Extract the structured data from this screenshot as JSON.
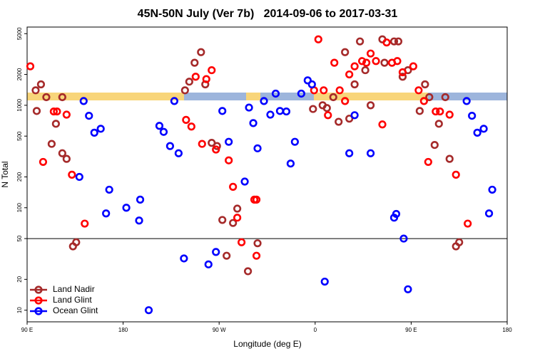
{
  "chart_data": {
    "type": "scatter",
    "title": "45N-50N July (Ver 7b)   2014-09-06 to 2017-03-31",
    "xlabel": "Longitude (deg E)",
    "ylabel": "N Total",
    "ylog": true,
    "xlim": [
      90,
      540
    ],
    "ylim": [
      7.7,
      5800
    ],
    "xticks": [
      {
        "value": 90,
        "label": "90 E"
      },
      {
        "value": 180,
        "label": "180"
      },
      {
        "value": 270,
        "label": "90 W"
      },
      {
        "value": 360,
        "label": "0"
      },
      {
        "value": 450,
        "label": "90 E"
      },
      {
        "value": 540,
        "label": "180"
      }
    ],
    "yticks": [
      10,
      20,
      50,
      100,
      200,
      500,
      1000,
      2000,
      5000
    ],
    "reference_line": 50,
    "legend": "bottom-left",
    "series": [
      {
        "name": "Land Nadir",
        "color": "#a52a2a",
        "x": [
          98,
          99,
          103,
          108,
          113,
          117,
          123,
          123,
          127,
          133,
          136,
          238,
          242,
          247,
          253,
          257,
          263,
          268,
          273,
          277,
          283,
          287,
          297,
          306,
          358,
          367,
          371,
          377,
          382,
          388,
          392,
          397,
          402,
          407,
          412,
          423,
          425,
          434,
          438,
          442,
          447,
          458,
          463,
          467,
          472,
          476,
          482,
          486,
          492,
          495
        ],
        "values": [
          1400,
          880,
          1600,
          1200,
          420,
          660,
          1200,
          340,
          300,
          42,
          46,
          1400,
          1700,
          2600,
          3300,
          1600,
          430,
          400,
          76,
          34,
          71,
          98,
          24,
          45,
          920,
          1000,
          940,
          1200,
          690,
          3300,
          740,
          1600,
          4200,
          2200,
          1000,
          4400,
          2600,
          4200,
          4200,
          1900,
          2200,
          880,
          1600,
          1200,
          410,
          660,
          1200,
          300,
          42,
          46
        ]
      },
      {
        "name": "Land Glint",
        "color": "#ff0000",
        "x": [
          93,
          105,
          115,
          118,
          127,
          132,
          144,
          239,
          244,
          248,
          254,
          258,
          263,
          267,
          279,
          283,
          287,
          291,
          303,
          305,
          305,
          359,
          363,
          368,
          372,
          378,
          383,
          388,
          392,
          397,
          404,
          408,
          412,
          417,
          423,
          427,
          432,
          437,
          442,
          452,
          457,
          462,
          466,
          473,
          477,
          486,
          492,
          503
        ],
        "values": [
          2400,
          280,
          870,
          870,
          810,
          210,
          70,
          720,
          620,
          1900,
          420,
          1800,
          2200,
          370,
          290,
          160,
          80,
          46,
          120,
          120,
          34,
          1400,
          4400,
          1400,
          800,
          2600,
          1400,
          1100,
          2000,
          2400,
          2700,
          2600,
          3200,
          2700,
          650,
          4100,
          2600,
          2700,
          2100,
          2400,
          1400,
          1100,
          280,
          870,
          870,
          810,
          210,
          70
        ]
      },
      {
        "name": "Ocean Glint",
        "color": "#0000ff",
        "x": [
          139,
          143,
          148,
          153,
          159,
          164,
          167,
          183,
          195,
          196,
          204,
          214,
          218,
          224,
          228,
          232,
          237,
          260,
          267,
          273,
          279,
          294,
          298,
          302,
          306,
          312,
          318,
          323,
          327,
          333,
          337,
          341,
          347,
          353,
          357,
          369,
          392,
          397,
          412,
          434,
          436,
          443,
          447,
          502,
          507,
          512,
          518,
          523,
          526
        ],
        "values": [
          200,
          1100,
          790,
          540,
          590,
          88,
          150,
          100,
          75,
          120,
          10,
          630,
          550,
          400,
          1100,
          340,
          32,
          28,
          37,
          880,
          440,
          180,
          950,
          670,
          380,
          1100,
          810,
          1300,
          880,
          870,
          270,
          440,
          1300,
          1750,
          1600,
          19,
          340,
          800,
          340,
          80,
          87,
          50,
          16,
          1100,
          790,
          540,
          590,
          88,
          150
        ]
      }
    ]
  }
}
